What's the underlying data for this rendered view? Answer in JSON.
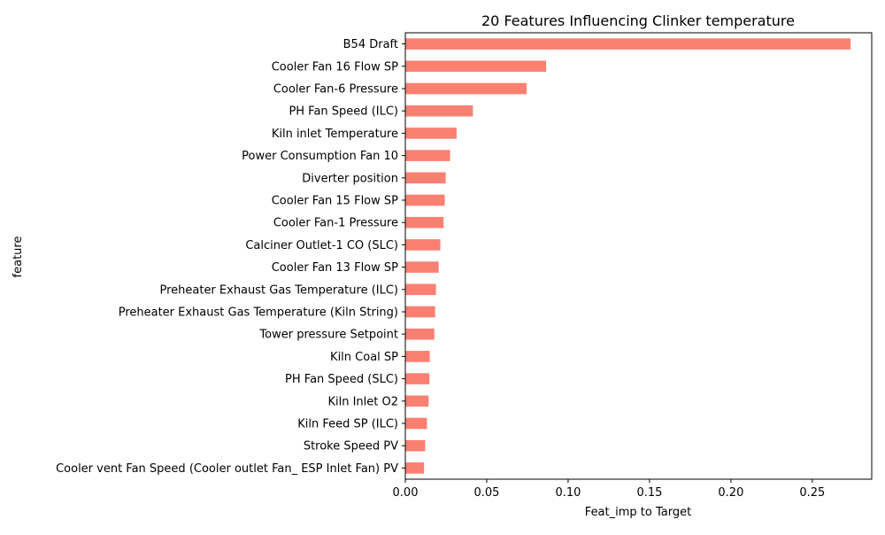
{
  "chart_data": {
    "type": "bar",
    "orientation": "horizontal",
    "title": "20 Features Influencing Clinker temperature",
    "xlabel": "Feat_imp to Target",
    "ylabel": "feature",
    "xlim": [
      0,
      0.2865
    ],
    "xticks": [
      "0.00",
      "0.05",
      "0.10",
      "0.15",
      "0.20",
      "0.25"
    ],
    "xtick_values": [
      0,
      0.05,
      0.1,
      0.15,
      0.2,
      0.25
    ],
    "grid": false,
    "bar_color": "#fa8072",
    "categories": [
      "B54 Draft",
      "Cooler Fan 16 Flow SP",
      "Cooler Fan-6 Pressure",
      "PH Fan Speed (ILC)",
      "Kiln inlet Temperature",
      "Power Consumption Fan 10",
      "Diverter position",
      "Cooler Fan 15 Flow SP",
      "Cooler Fan-1 Pressure",
      "Calciner Outlet-1 CO (SLC)",
      "Cooler Fan 13 Flow SP",
      "Preheater Exhaust Gas Temperature (ILC)",
      "Preheater Exhaust Gas Temperature  (Kiln String)",
      "Tower pressure Setpoint",
      "Kiln Coal SP",
      "PH Fan Speed (SLC)",
      "Kiln Inlet O2",
      "Kiln Feed  SP  (ILC)",
      "Stroke Speed PV",
      "Cooler vent Fan Speed (Cooler outlet Fan_ ESP Inlet Fan) PV"
    ],
    "values": [
      0.2735,
      0.0865,
      0.0745,
      0.0415,
      0.0315,
      0.0275,
      0.0248,
      0.0242,
      0.0235,
      0.0215,
      0.0205,
      0.0188,
      0.0183,
      0.0178,
      0.015,
      0.0148,
      0.0143,
      0.0133,
      0.0122,
      0.0115
    ]
  }
}
